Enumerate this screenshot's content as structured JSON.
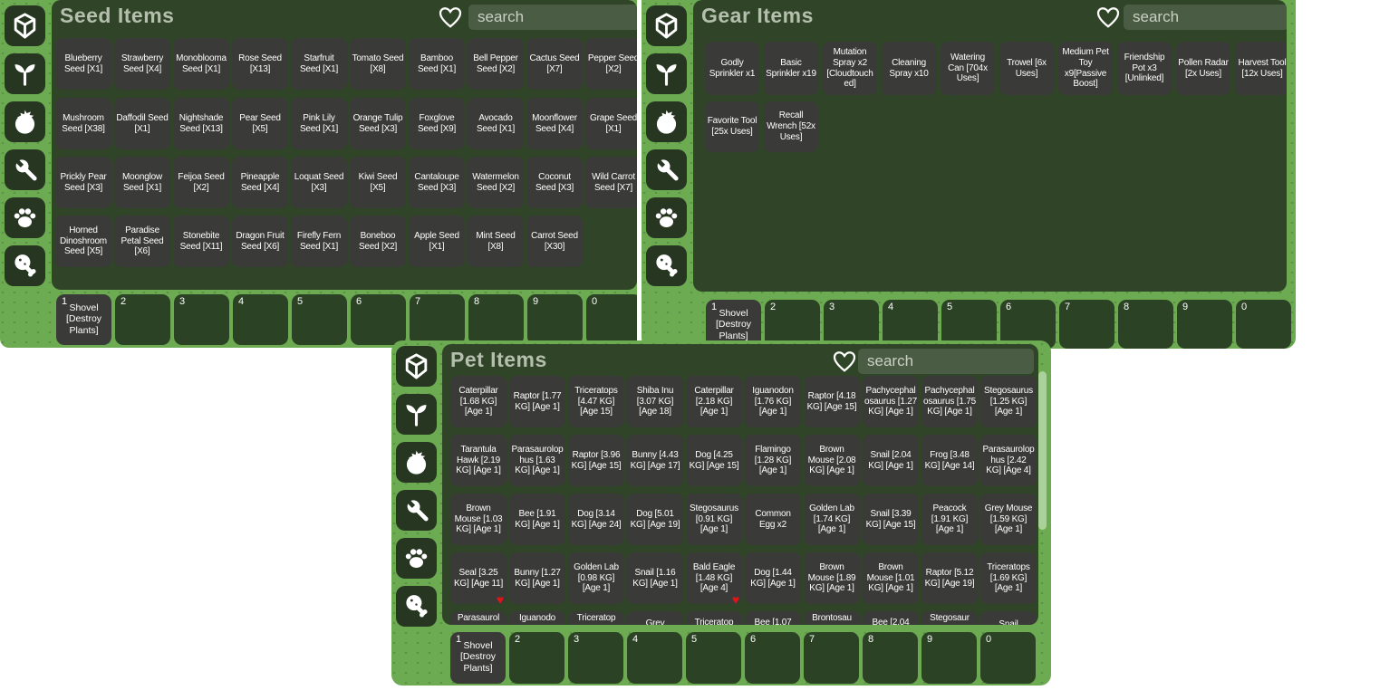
{
  "favorite_mark": "♥",
  "hotbar_numbers": [
    "1",
    "2",
    "3",
    "4",
    "5",
    "6",
    "7",
    "8",
    "9",
    "0"
  ],
  "sidebar_icons": [
    {
      "name": "package"
    },
    {
      "name": "seedling"
    },
    {
      "name": "tomato"
    },
    {
      "name": "wrench"
    },
    {
      "name": "paw"
    },
    {
      "name": "drumstick"
    }
  ],
  "colors": {
    "page_bg": "#ffffff",
    "frame_green": "#6cab51",
    "content_green": "#304528",
    "tile_dark": "#3a3a38",
    "slot_green": "#2b4224",
    "icon_button_dark": "#263621",
    "search_bg": "#4b5c44",
    "title_text": "#b5bfae",
    "scrollbar_thumb": "#a9d199",
    "favorite_red": "#e01616"
  },
  "windows": [
    {
      "title": "Seed Items",
      "search_placeholder": "search",
      "hotbar": {
        "slot1_label": "Shovel [Destroy Plants]"
      },
      "rows": [
        {
          "items": [
            {
              "label": "Blueberry Seed [X1]"
            },
            {
              "label": "Strawberry Seed [X4]"
            },
            {
              "label": "Monoblooma Seed [X1]"
            },
            {
              "label": "Rose Seed [X13]"
            },
            {
              "label": "Starfruit Seed [X1]"
            },
            {
              "label": "Tomato Seed [X8]"
            },
            {
              "label": "Bamboo Seed [X1]"
            },
            {
              "label": "Bell Pepper Seed [X2]"
            },
            {
              "label": "Cactus Seed [X7]"
            },
            {
              "label": "Pepper Seed [X2]"
            }
          ]
        },
        {
          "items": [
            {
              "label": "Mushroom Seed [X38]"
            },
            {
              "label": "Daffodil Seed [X1]"
            },
            {
              "label": "Nightshade Seed [X13]"
            },
            {
              "label": "Pear Seed [X5]"
            },
            {
              "label": "Pink Lily Seed [X1]"
            },
            {
              "label": "Orange Tulip Seed [X3]"
            },
            {
              "label": "Foxglove Seed [X9]"
            },
            {
              "label": "Avocado Seed [X1]"
            },
            {
              "label": "Moonflower Seed [X4]"
            },
            {
              "label": "Grape Seed [X1]"
            }
          ]
        },
        {
          "items": [
            {
              "label": "Prickly Pear Seed [X3]"
            },
            {
              "label": "Moonglow Seed [X1]"
            },
            {
              "label": "Feijoa Seed [X2]"
            },
            {
              "label": "Pineapple Seed [X4]"
            },
            {
              "label": "Loquat Seed [X3]"
            },
            {
              "label": "Kiwi Seed [X5]"
            },
            {
              "label": "Cantaloupe Seed [X3]"
            },
            {
              "label": "Watermelon Seed [X2]"
            },
            {
              "label": "Coconut Seed [X3]"
            },
            {
              "label": "Wild Carrot Seed [X7]"
            }
          ]
        },
        {
          "items": [
            {
              "label": "Horned Dinoshroom Seed [X5]"
            },
            {
              "label": "Paradise Petal Seed [X6]"
            },
            {
              "label": "Stonebite Seed [X11]"
            },
            {
              "label": "Dragon Fruit Seed [X6]"
            },
            {
              "label": "Firefly Fern Seed [X1]"
            },
            {
              "label": "Boneboo Seed [X2]"
            },
            {
              "label": "Apple Seed [X1]"
            },
            {
              "label": "Mint Seed [X8]"
            },
            {
              "label": "Carrot Seed [X30]"
            }
          ]
        }
      ]
    },
    {
      "title": "Gear Items",
      "search_placeholder": "search",
      "hotbar": {
        "slot1_label": "Shovel [Destroy Plants]"
      },
      "rows": [
        {
          "items": [
            {
              "label": "Godly Sprinkler x1"
            },
            {
              "label": "Basic Sprinkler x19"
            },
            {
              "label": "Mutation Spray x2 [Cloudtouched]"
            },
            {
              "label": "Cleaning Spray x10"
            },
            {
              "label": "Watering Can [704x Uses]"
            },
            {
              "label": "Trowel [6x Uses]"
            },
            {
              "label": "Medium Pet Toy x9[Passive Boost]"
            },
            {
              "label": "Friendship Pot x3 [Unlinked]"
            },
            {
              "label": "Pollen Radar [2x Uses]"
            },
            {
              "label": "Harvest Tool [12x Uses]"
            }
          ]
        },
        {
          "items": [
            {
              "label": "Favorite Tool [25x Uses]"
            },
            {
              "label": "Recall Wrench [52x Uses]"
            }
          ]
        }
      ]
    },
    {
      "title": "Pet Items",
      "search_placeholder": "search",
      "hotbar": {
        "slot1_label": "Shovel [Destroy Plants]"
      },
      "rows": [
        {
          "items": [
            {
              "label": "Caterpillar [1.68 KG] [Age 1]"
            },
            {
              "label": "Raptor [1.77 KG] [Age 1]"
            },
            {
              "label": "Triceratops [4.47 KG] [Age 15]"
            },
            {
              "label": "Shiba Inu [3.07 KG] [Age 18]"
            },
            {
              "label": "Caterpillar [2.18 KG] [Age 1]"
            },
            {
              "label": "Iguanodon [1.76 KG] [Age 1]"
            },
            {
              "label": "Raptor [4.18 KG] [Age 15]"
            },
            {
              "label": "Pachycephalosaurus [1.27 KG] [Age 1]"
            },
            {
              "label": "Pachycephalosaurus [1.75 KG] [Age 1]"
            },
            {
              "label": "Stegosaurus [1.25 KG] [Age 1]"
            }
          ]
        },
        {
          "items": [
            {
              "label": "Tarantula Hawk [2.19 KG] [Age 1]"
            },
            {
              "label": "Parasaurolophus [1.63 KG] [Age 1]"
            },
            {
              "label": "Raptor [3.96 KG] [Age 15]"
            },
            {
              "label": "Bunny [4.43 KG] [Age 17]"
            },
            {
              "label": "Dog [4.25 KG] [Age 15]"
            },
            {
              "label": "Flamingo [1.28 KG] [Age 1]"
            },
            {
              "label": "Brown Mouse [2.08 KG] [Age 1]"
            },
            {
              "label": "Snail [2.04 KG] [Age 1]"
            },
            {
              "label": "Frog [3.48 KG] [Age 14]"
            },
            {
              "label": "Parasaurolophus [2.42 KG] [Age 4]"
            }
          ]
        },
        {
          "items": [
            {
              "label": "Brown Mouse [1.03 KG] [Age 1]"
            },
            {
              "label": "Bee [1.91 KG] [Age 1]"
            },
            {
              "label": "Dog [3.14 KG] [Age 24]"
            },
            {
              "label": "Dog [5.01 KG] [Age 19]"
            },
            {
              "label": "Stegosaurus [0.91 KG] [Age 1]"
            },
            {
              "label": "Common Egg x2"
            },
            {
              "label": "Golden Lab [1.74 KG] [Age 1]"
            },
            {
              "label": "Snail [3.39 KG] [Age 15]"
            },
            {
              "label": "Peacock [1.91 KG] [Age 1]"
            },
            {
              "label": "Grey Mouse [1.59 KG] [Age 1]"
            }
          ]
        },
        {
          "items": [
            {
              "label": "Seal [3.25 KG] [Age 11]",
              "favorited": true
            },
            {
              "label": "Bunny [1.27 KG] [Age 1]"
            },
            {
              "label": "Golden Lab [0.98 KG] [Age 1]"
            },
            {
              "label": "Snail [1.16 KG] [Age 1]"
            },
            {
              "label": "Bald Eagle [1.48 KG] [Age 4]",
              "favorited": true
            },
            {
              "label": "Dog [1.44 KG] [Age 1]"
            },
            {
              "label": "Brown Mouse [1.89 KG] [Age 1]"
            },
            {
              "label": "Brown Mouse [1.01 KG] [Age 1]"
            },
            {
              "label": "Raptor [5.12 KG] [Age 19]"
            },
            {
              "label": "Triceratops [1.69 KG] [Age 1]"
            }
          ]
        },
        {
          "clipped": true,
          "items": [
            {
              "label": "Parasaurol"
            },
            {
              "label": "Iguanodo"
            },
            {
              "label": "Triceratop"
            },
            {
              "label": "Grey"
            },
            {
              "label": "Triceratop"
            },
            {
              "label": "Bee [1.07"
            },
            {
              "label": "Brontosau"
            },
            {
              "label": "Bee [2.04"
            },
            {
              "label": "Stegosaur"
            },
            {
              "label": "Snail"
            }
          ]
        }
      ]
    }
  ]
}
